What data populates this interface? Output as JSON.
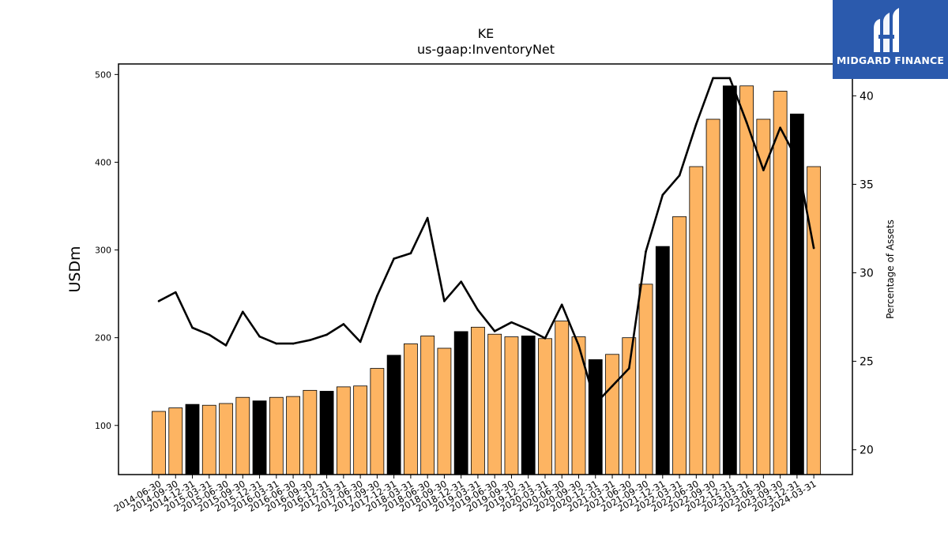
{
  "chart_data": {
    "type": "bar",
    "title": "KE",
    "subtitle": "us-gaap:InventoryNet",
    "ylabel": "USDm",
    "y2label": "Percentage of Assets",
    "ylim": [
      44,
      512
    ],
    "y2lim": [
      18.6,
      41.8
    ],
    "yticks": [
      100,
      200,
      300,
      400,
      500
    ],
    "y2ticks": [
      20,
      25,
      30,
      35,
      40
    ],
    "categories": [
      "2014-06-30",
      "2014-09-30",
      "2014-12-31",
      "2015-03-31",
      "2015-06-30",
      "2015-09-30",
      "2015-12-31",
      "2016-03-31",
      "2016-06-30",
      "2016-09-30",
      "2016-12-31",
      "2017-03-31",
      "2017-06-30",
      "2017-09-30",
      "2017-12-31",
      "2018-03-31",
      "2018-06-30",
      "2018-09-30",
      "2018-12-31",
      "2019-03-31",
      "2019-06-30",
      "2019-09-30",
      "2019-12-31",
      "2020-03-31",
      "2020-06-30",
      "2020-09-30",
      "2020-12-31",
      "2021-03-31",
      "2021-06-30",
      "2021-09-30",
      "2021-12-31",
      "2022-03-31",
      "2022-06-30",
      "2022-09-30",
      "2022-12-31",
      "2023-03-31",
      "2023-06-30",
      "2023-09-30",
      "2023-12-31",
      "2024-03-31"
    ],
    "series": [
      {
        "type": "bar",
        "values": [
          116,
          120,
          124,
          123,
          125,
          132,
          128,
          132,
          133,
          140,
          139,
          144,
          145,
          165,
          180,
          193,
          202,
          188,
          207,
          212,
          204,
          201,
          202,
          199,
          219,
          201,
          175,
          181,
          200,
          261,
          304,
          338,
          395,
          449,
          487,
          487,
          449,
          481,
          455,
          395
        ],
        "fiscal_year_end": [
          false,
          false,
          true,
          false,
          false,
          false,
          true,
          false,
          false,
          false,
          true,
          false,
          false,
          false,
          true,
          false,
          false,
          false,
          true,
          false,
          false,
          false,
          true,
          false,
          false,
          false,
          true,
          false,
          false,
          false,
          true,
          false,
          false,
          false,
          true,
          false,
          false,
          false,
          true,
          false
        ],
        "color": "#fdb462",
        "highlight_color": "#000000"
      },
      {
        "type": "line",
        "axis": "right",
        "values": [
          28.4,
          28.9,
          26.9,
          26.5,
          25.9,
          27.8,
          26.4,
          26.0,
          26.0,
          26.2,
          26.5,
          27.1,
          26.1,
          28.7,
          30.8,
          31.1,
          33.1,
          28.4,
          29.5,
          27.9,
          26.7,
          27.2,
          26.8,
          26.3,
          28.2,
          25.9,
          22.6,
          23.6,
          24.6,
          31.2,
          34.4,
          35.5,
          38.4,
          41.0,
          41.0,
          38.5,
          35.8,
          38.2,
          36.4,
          31.4
        ],
        "color": "#000000"
      }
    ],
    "grid": false
  },
  "logo": {
    "text": "MIDGARD FINANCE",
    "background": "#2b5aad"
  }
}
